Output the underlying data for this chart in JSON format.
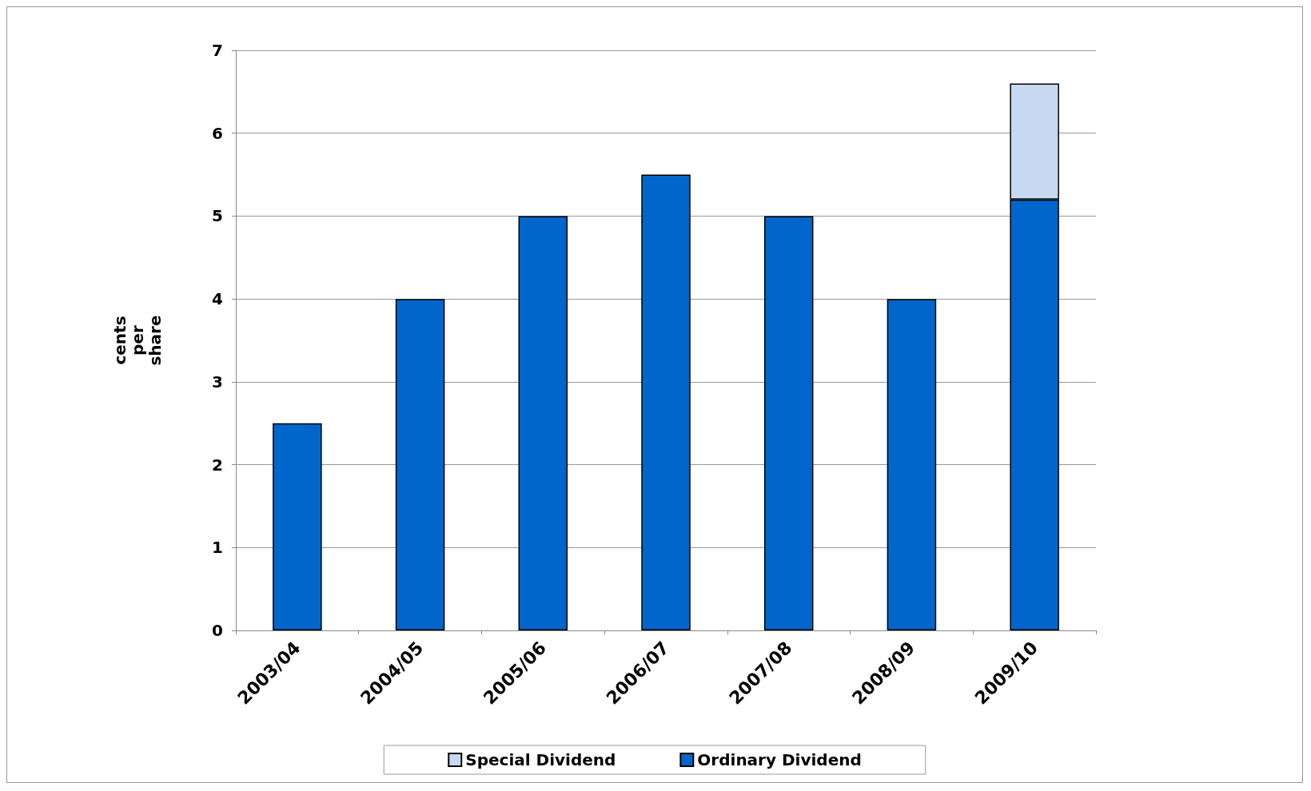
{
  "chart_data": {
    "type": "bar",
    "ylabel": "cents per share",
    "categories": [
      "2003/04",
      "2004/05",
      "2005/06",
      "2006/07",
      "2007/08",
      "2008/09",
      "2009/10"
    ],
    "stacked": true,
    "series": [
      {
        "name": "Ordinary Dividend",
        "color": "#0066cc",
        "values": [
          2.5,
          4,
          5,
          5.5,
          5,
          4,
          5.2
        ]
      },
      {
        "name": "Special Dividend",
        "color": "#c6d9f0",
        "values": [
          null,
          null,
          null,
          null,
          null,
          null,
          1.4
        ]
      }
    ],
    "ylim": [
      0,
      7
    ],
    "yticks": [
      0,
      1,
      2,
      3,
      4,
      5,
      6,
      7
    ],
    "grid": "y",
    "legend": "bottom"
  }
}
